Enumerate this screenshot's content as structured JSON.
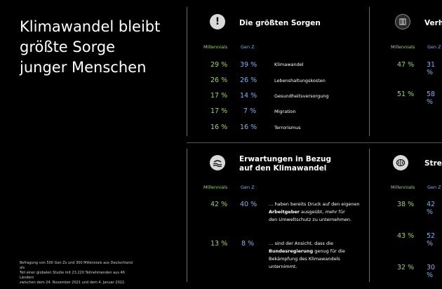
{
  "headline": [
    "Klimawandel bleibt",
    "größte Sorge",
    "junger Menschen"
  ],
  "footnote": [
    "Befragung von 500 Gen Zs und 300 Millennials aus Deutschland als",
    "Teil einer globalen Studie mit 23.220 Teilnehmenden aus 46 Ländern",
    "zwischen dem 24. November 2021 und dem 4. Januar 2022."
  ],
  "col_millennials": "Millennials",
  "col_genz": "Gen Z",
  "panel1": {
    "icon": "exclamation-icon",
    "title": "Die größten Sorgen",
    "rows": [
      {
        "mill": "29 %",
        "genz": "39 %",
        "label": "Klimawandel"
      },
      {
        "mill": "26 %",
        "genz": "26 %",
        "label": "Lebenshaltungskosten"
      },
      {
        "mill": "17 %",
        "genz": "14 %",
        "label": "Gesundheitsversorgung"
      },
      {
        "mill": "17 %",
        "genz": "7 %",
        "label": "Migration"
      },
      {
        "mill": "16 %",
        "genz": "16 %",
        "label": "Terrorismus"
      }
    ]
  },
  "panel2": {
    "icon": "building-icon",
    "title": "Verh",
    "rows": [
      {
        "mill": "47 %",
        "genz": "31 %"
      },
      {
        "mill": "51 %",
        "genz": "58 %"
      }
    ]
  },
  "panel3": {
    "icon": "climate-icon",
    "title": [
      "Erwartungen in Bezug",
      "auf den Klimawandel"
    ],
    "rows": [
      {
        "mill": "42 %",
        "genz": "40 %",
        "pre": "… haben bereits Druck auf den eigenen",
        "bold": "Arbeitgeber",
        "post": " ausgeübt, mehr für",
        "last": "den Umweltschutz zu unternehmen."
      },
      {
        "mill": "13 %",
        "genz": "8 %",
        "pre": "… sind der Ansicht, dass die",
        "bold": "Bundesregierung",
        "post": " genug für die",
        "last": "Bekämpfung des Klimawandels",
        "last2": "unternimmt."
      }
    ]
  },
  "panel4": {
    "icon": "brain-icon",
    "title": "Stres",
    "rows": [
      {
        "mill": "38 %",
        "genz": "42 %"
      },
      {
        "mill": "43 %",
        "genz": "52 %"
      },
      {
        "mill": "32 %",
        "genz": "30 %"
      }
    ]
  }
}
